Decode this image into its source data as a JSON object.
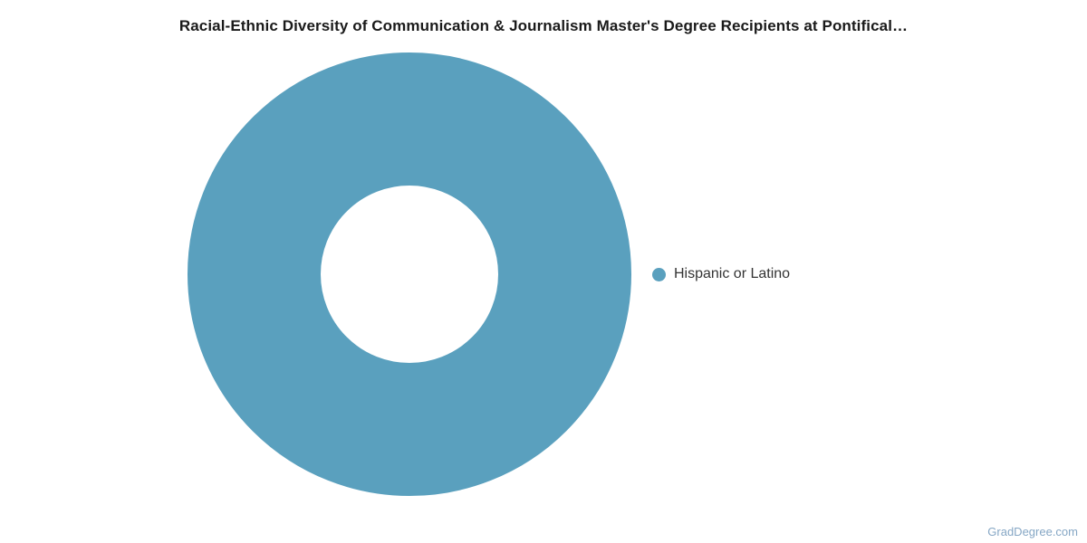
{
  "page": {
    "background": "#ffffff",
    "watermark": "GradDegree.com"
  },
  "colors": {
    "title_text": "#1a1a1a",
    "legend_text": "#333333",
    "watermark_text": "#86a7c5",
    "series_blue": "#5aa0be",
    "donut_hole": "#ffffff"
  },
  "chart_data": {
    "type": "pie",
    "subtype": "donut",
    "title": "Racial-Ethnic Diversity of Communication & Journalism Master's Degree Recipients at Pontifical…",
    "categories": [
      "Hispanic or Latino"
    ],
    "values": [
      100
    ],
    "unit": "percent_share",
    "colors": [
      "#5aa0be"
    ],
    "legend_position": "right",
    "inner_radius_ratio": 0.4,
    "data_labels": "none"
  },
  "legend": {
    "items": [
      {
        "label": "Hispanic or Latino",
        "color": "#5aa0be"
      }
    ]
  }
}
